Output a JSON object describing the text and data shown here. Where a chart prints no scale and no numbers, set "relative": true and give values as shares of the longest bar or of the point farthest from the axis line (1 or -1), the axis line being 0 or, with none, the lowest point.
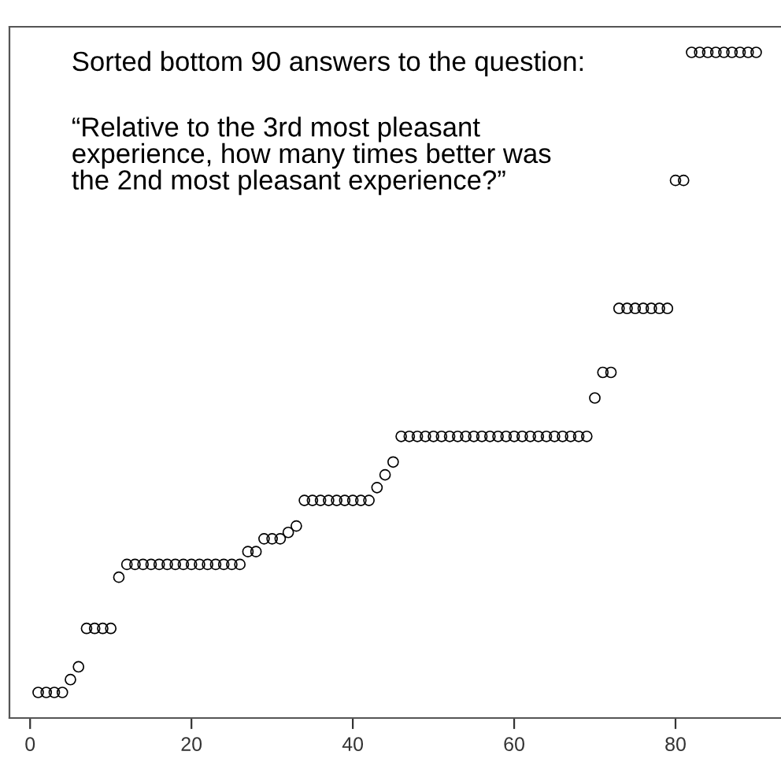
{
  "chart_data": {
    "type": "scatter",
    "relative": true,
    "marker": "circle",
    "color": "#000000",
    "x": [
      1,
      2,
      3,
      4,
      5,
      6,
      7,
      8,
      9,
      10,
      11,
      12,
      13,
      14,
      15,
      16,
      17,
      18,
      19,
      20,
      21,
      22,
      23,
      24,
      25,
      26,
      27,
      28,
      29,
      30,
      31,
      32,
      33,
      34,
      35,
      36,
      37,
      38,
      39,
      40,
      41,
      42,
      43,
      44,
      45,
      46,
      47,
      48,
      49,
      50,
      51,
      52,
      53,
      54,
      55,
      56,
      57,
      58,
      59,
      60,
      61,
      62,
      63,
      64,
      65,
      66,
      67,
      68,
      69,
      70,
      71,
      72,
      73,
      74,
      75,
      76,
      77,
      78,
      79,
      80,
      81,
      82,
      83,
      84,
      85,
      86,
      87,
      88,
      89,
      90
    ],
    "values": [
      0,
      0,
      0,
      0,
      0.02,
      0.04,
      0.1,
      0.1,
      0.1,
      0.1,
      0.18,
      0.2,
      0.2,
      0.2,
      0.2,
      0.2,
      0.2,
      0.2,
      0.2,
      0.2,
      0.2,
      0.2,
      0.2,
      0.2,
      0.2,
      0.2,
      0.22,
      0.22,
      0.24,
      0.24,
      0.24,
      0.25,
      0.26,
      0.3,
      0.3,
      0.3,
      0.3,
      0.3,
      0.3,
      0.3,
      0.3,
      0.3,
      0.32,
      0.34,
      0.36,
      0.4,
      0.4,
      0.4,
      0.4,
      0.4,
      0.4,
      0.4,
      0.4,
      0.4,
      0.4,
      0.4,
      0.4,
      0.4,
      0.4,
      0.4,
      0.4,
      0.4,
      0.4,
      0.4,
      0.4,
      0.4,
      0.4,
      0.4,
      0.4,
      0.46,
      0.5,
      0.5,
      0.6,
      0.6,
      0.6,
      0.6,
      0.6,
      0.6,
      0.6,
      0.8,
      0.8,
      1,
      1,
      1,
      1,
      1,
      1,
      1,
      1,
      1
    ],
    "xlim": [
      -2.56,
      93.56
    ],
    "xticks": [
      0,
      20,
      40,
      60,
      80
    ],
    "tick_labels": "x",
    "annotations": [
      "Sorted bottom 90 answers to the question:",
      "“Relative to the 3rd most pleasant\nexperience, how many times better was\nthe 2nd most pleasant experience?”"
    ]
  }
}
